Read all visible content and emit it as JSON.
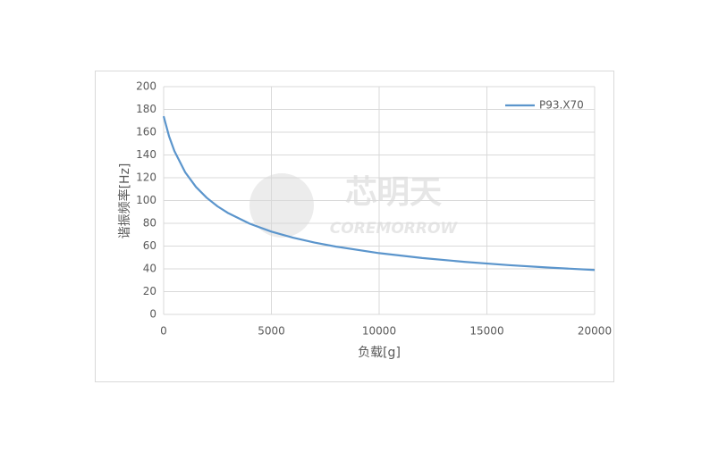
{
  "chart_data": {
    "type": "line",
    "y_label": "谐振频率[Hz]",
    "x_label": "负载[g]",
    "watermark": [
      "芯明天",
      "COREMORROW"
    ],
    "x": [
      0,
      250,
      500,
      1000,
      1500,
      2000,
      2500,
      3000,
      4000,
      5000,
      6000,
      7000,
      8000,
      10000,
      12000,
      14000,
      16000,
      18000,
      20000
    ],
    "series": [
      {
        "name": "P93.X70",
        "color": "#5b95cc",
        "values": [
          174,
          156.5,
          143.4,
          124.8,
          111.9,
          102.4,
          94.9,
          88.9,
          79.6,
          72.7,
          67.4,
          63.1,
          59.5,
          53.8,
          49.5,
          46.1,
          43.3,
          41.0,
          39.0
        ]
      }
    ],
    "xlim": [
      0,
      20000
    ],
    "xticks": [
      0,
      5000,
      10000,
      15000,
      20000
    ],
    "ylim": [
      0,
      200
    ],
    "yticks": [
      0,
      20,
      40,
      60,
      80,
      100,
      120,
      140,
      160,
      180,
      200
    ],
    "grid": true,
    "legend": "top-right"
  }
}
